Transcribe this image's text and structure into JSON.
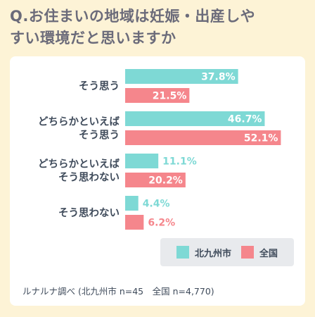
{
  "title_line1": "Q.お住まいの地域は妊娠・出産しや",
  "title_line2": "すい環境だと思いますか",
  "chart_data": {
    "type": "bar",
    "orientation": "horizontal",
    "categories": [
      [
        "そう思う"
      ],
      [
        "どちらかといえば",
        "そう思う"
      ],
      [
        "どちらかといえば",
        "そう思わない"
      ],
      [
        "そう思わない"
      ]
    ],
    "series": [
      {
        "name": "北九州市",
        "color": "#7ed9d5",
        "values": [
          37.8,
          46.7,
          11.1,
          4.4
        ]
      },
      {
        "name": "全国",
        "color": "#f5868c",
        "values": [
          21.5,
          52.1,
          20.2,
          6.2
        ]
      }
    ],
    "value_suffix": "%",
    "xlim": [
      0,
      60
    ],
    "grid": false,
    "legend_position": "bottom-right"
  },
  "source": "ルナルナ調べ (北九州市 n=45　全国 n=4,770)"
}
